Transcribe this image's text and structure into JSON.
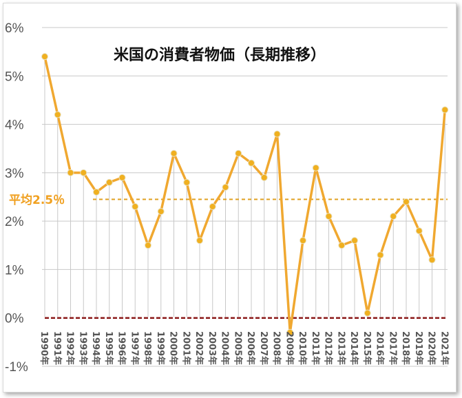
{
  "chart_data": {
    "type": "line",
    "title": "米国の消費者物価（長期推移）",
    "categories": [
      "1990年",
      "1991年",
      "1992年",
      "1993年",
      "1994年",
      "1995年",
      "1996年",
      "1997年",
      "1998年",
      "1999年",
      "2000年",
      "2001年",
      "2002年",
      "2003年",
      "2004年",
      "2005年",
      "2006年",
      "2007年",
      "2008年",
      "2009年",
      "2010年",
      "2011年",
      "2012年",
      "2013年",
      "2014年",
      "2015年",
      "2016年",
      "2017年",
      "2018年",
      "2019年",
      "2020年",
      "2021年"
    ],
    "series": [
      {
        "values": [
          5.4,
          4.2,
          3.0,
          3.0,
          2.6,
          2.8,
          2.9,
          2.3,
          1.5,
          2.2,
          3.4,
          2.8,
          1.6,
          2.3,
          2.7,
          3.4,
          3.2,
          2.9,
          3.8,
          -0.3,
          1.6,
          3.1,
          2.1,
          1.5,
          1.6,
          0.1,
          1.3,
          2.1,
          2.4,
          1.8,
          1.2,
          4.3
        ]
      }
    ],
    "y_ticks": [
      "6%",
      "5%",
      "4%",
      "3%",
      "2%",
      "1%",
      "0%",
      "-1%"
    ],
    "ylim": [
      -1,
      6
    ],
    "average": {
      "value": 2.45,
      "label": "平均2.5％"
    },
    "grid": "vertical lines at each year, horizontal lines at each percent",
    "colors": {
      "line": "#f0a830",
      "marker": "#f0b020",
      "average_line": "#e0a020",
      "zero_line": "#8b1a1a",
      "grid": "#c8c8c8"
    }
  }
}
